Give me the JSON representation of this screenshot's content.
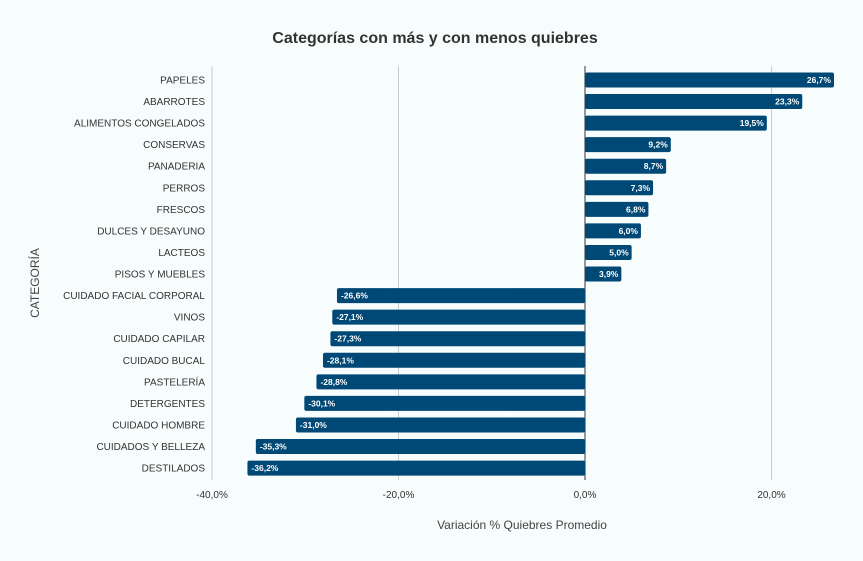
{
  "chart_data": {
    "type": "bar",
    "orientation": "horizontal",
    "title": "Categorías con más y con menos quiebres",
    "xlabel": "Variación % Quiebres Promedio",
    "ylabel": "CATEGORÍA",
    "xlim": [
      -40,
      28
    ],
    "xticks": [
      -40,
      -20,
      0,
      20
    ],
    "xtick_labels": [
      "-40,0%",
      "-20,0%",
      "0,0%",
      "20,0%"
    ],
    "grid": true,
    "bar_color": "#004875",
    "categories": [
      "PAPELES",
      "ABARROTES",
      "ALIMENTOS CONGELADOS",
      "CONSERVAS",
      "PANADERIA",
      "PERROS",
      "FRESCOS",
      "DULCES Y DESAYUNO",
      "LACTEOS",
      "PISOS Y MUEBLES",
      "CUIDADO FACIAL CORPORAL",
      "VINOS",
      "CUIDADO CAPILAR",
      "CUIDADO BUCAL",
      "PASTELERÍA",
      "DETERGENTES",
      "CUIDADO HOMBRE",
      "CUIDADOS Y BELLEZA",
      "DESTILADOS"
    ],
    "values": [
      26.7,
      23.3,
      19.5,
      9.2,
      8.7,
      7.3,
      6.8,
      6.0,
      5.0,
      3.9,
      -26.6,
      -27.1,
      -27.3,
      -28.1,
      -28.8,
      -30.1,
      -31.0,
      -35.3,
      -36.2
    ],
    "data_labels": [
      "26,7%",
      "23,3%",
      "19,5%",
      "9,2%",
      "8,7%",
      "7,3%",
      "6,8%",
      "6,0%",
      "5,0%",
      "3,9%",
      "-26,6%",
      "-27,1%",
      "-27,3%",
      "-28,1%",
      "-28,8%",
      "-30,1%",
      "-31,0%",
      "-35,3%",
      "-36,2%"
    ]
  }
}
